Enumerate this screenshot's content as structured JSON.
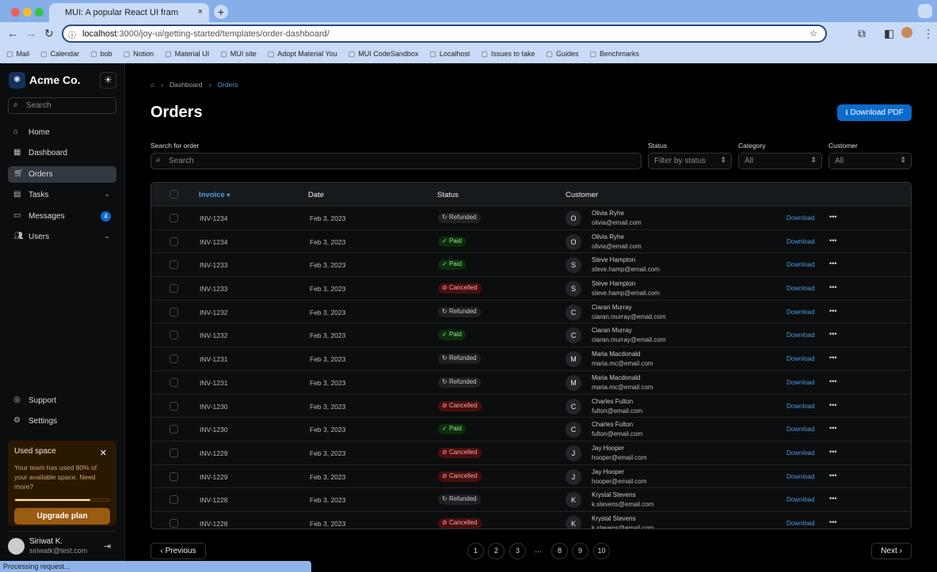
{
  "browser": {
    "tab_title": "MUI: A popular React UI fram",
    "url_host": "localhost",
    "url_path": ":3000/joy-ui/getting-started/templates/order-dashboard/",
    "bookmarks": [
      "Mail",
      "Calendar",
      "bob",
      "Notion",
      "Material UI",
      "MUI site",
      "Adopt Material You",
      "MUI CodeSandbox",
      "Localhost",
      "Issues to take",
      "Guides",
      "Benchmarks"
    ],
    "status": "Processing request..."
  },
  "sidebar": {
    "brand": "Acme Co.",
    "search_placeholder": "Search",
    "items": [
      {
        "label": "Home",
        "icon": "home-icon"
      },
      {
        "label": "Dashboard",
        "icon": "dashboard-icon"
      },
      {
        "label": "Orders",
        "icon": "cart-icon",
        "active": true
      },
      {
        "label": "Tasks",
        "icon": "clipboard-icon"
      },
      {
        "label": "Messages",
        "icon": "chat-icon",
        "badge": "4"
      },
      {
        "label": "Users",
        "icon": "group-icon"
      }
    ],
    "bottom": [
      {
        "label": "Support"
      },
      {
        "label": "Settings"
      }
    ],
    "card": {
      "title": "Used space",
      "text": "Your team has used 80% of your available space. Need more?",
      "progress": 80,
      "button": "Upgrade plan"
    },
    "user": {
      "name": "Siriwat K.",
      "email": "siriwatk@test.com"
    }
  },
  "breadcrumb": [
    "Dashboard",
    "Orders"
  ],
  "page": {
    "title": "Orders",
    "download_pdf": "Download PDF"
  },
  "filters": {
    "search_label": "Search for order",
    "search_placeholder": "Search",
    "status_label": "Status",
    "status_value": "Filter by status",
    "category_label": "Category",
    "category_value": "All",
    "customer_label": "Customer",
    "customer_value": "All"
  },
  "table": {
    "headers": [
      "Invoice",
      "Date",
      "Status",
      "Customer"
    ],
    "download_label": "Download",
    "rows": [
      {
        "inv": "INV-1234",
        "date": "Feb 3, 2023",
        "status": "Refunded",
        "initial": "O",
        "name": "Olivia Ryhe",
        "email": "olivia@email.com"
      },
      {
        "inv": "INV-1234",
        "date": "Feb 3, 2023",
        "status": "Paid",
        "initial": "O",
        "name": "Olivia Ryhe",
        "email": "olivia@email.com"
      },
      {
        "inv": "INV-1233",
        "date": "Feb 3, 2023",
        "status": "Paid",
        "initial": "S",
        "name": "Steve Hampton",
        "email": "steve.hamp@email.com"
      },
      {
        "inv": "INV-1233",
        "date": "Feb 3, 2023",
        "status": "Cancelled",
        "initial": "S",
        "name": "Steve Hampton",
        "email": "steve.hamp@email.com"
      },
      {
        "inv": "INV-1232",
        "date": "Feb 3, 2023",
        "status": "Refunded",
        "initial": "C",
        "name": "Ciaran Murray",
        "email": "ciaran.murray@email.com"
      },
      {
        "inv": "INV-1232",
        "date": "Feb 3, 2023",
        "status": "Paid",
        "initial": "C",
        "name": "Ciaran Murray",
        "email": "ciaran.murray@email.com"
      },
      {
        "inv": "INV-1231",
        "date": "Feb 3, 2023",
        "status": "Refunded",
        "initial": "M",
        "name": "Maria Macdonald",
        "email": "maria.mc@email.com"
      },
      {
        "inv": "INV-1231",
        "date": "Feb 3, 2023",
        "status": "Refunded",
        "initial": "M",
        "name": "Maria Macdonald",
        "email": "maria.mc@email.com"
      },
      {
        "inv": "INV-1230",
        "date": "Feb 3, 2023",
        "status": "Cancelled",
        "initial": "C",
        "name": "Charles Fulton",
        "email": "fulton@email.com"
      },
      {
        "inv": "INV-1230",
        "date": "Feb 3, 2023",
        "status": "Paid",
        "initial": "C",
        "name": "Charles Fulton",
        "email": "fulton@email.com"
      },
      {
        "inv": "INV-1229",
        "date": "Feb 3, 2023",
        "status": "Cancelled",
        "initial": "J",
        "name": "Jay Hooper",
        "email": "hooper@email.com"
      },
      {
        "inv": "INV-1229",
        "date": "Feb 3, 2023",
        "status": "Cancelled",
        "initial": "J",
        "name": "Jay Hooper",
        "email": "hooper@email.com"
      },
      {
        "inv": "INV-1228",
        "date": "Feb 3, 2023",
        "status": "Refunded",
        "initial": "K",
        "name": "Krystal Stevens",
        "email": "k.stevens@email.com"
      },
      {
        "inv": "INV-1228",
        "date": "Feb 3, 2023",
        "status": "Cancelled",
        "initial": "K",
        "name": "Krystal Stevens",
        "email": "k.stevens@email.com"
      }
    ]
  },
  "status_colors": {
    "Paid": {
      "bg": "#0a2e0a",
      "fg": "#9be29b",
      "icon": "✓"
    },
    "Refunded": {
      "bg": "#1e2124",
      "fg": "#ccc",
      "icon": "↻"
    },
    "Cancelled": {
      "bg": "#4a0e0e",
      "fg": "#f3a7a7",
      "icon": "⊘"
    }
  },
  "pagination": {
    "previous": "Previous",
    "next": "Next",
    "pages": [
      "1",
      "2",
      "3",
      "…",
      "8",
      "9",
      "10"
    ]
  }
}
